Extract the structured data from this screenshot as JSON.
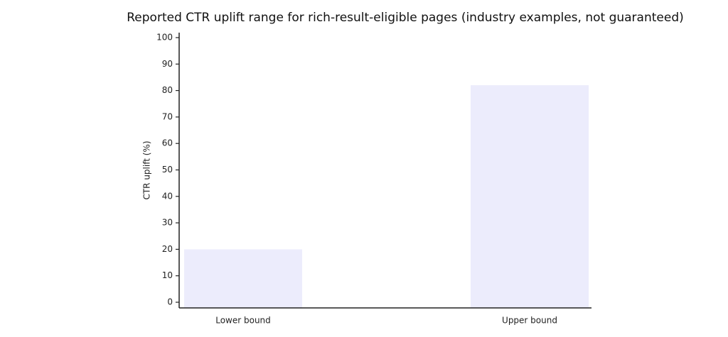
{
  "chart_data": {
    "type": "bar",
    "title": "Reported CTR uplift range for rich-result-eligible pages (industry examples, not guaranteed)",
    "y_label": "CTR uplift (%)",
    "categories": [
      "Lower bound",
      "Upper bound"
    ],
    "values": [
      20,
      82
    ],
    "color": "#ececfc",
    "ylim": [
      0,
      100
    ],
    "yticks": [
      0,
      10,
      20,
      30,
      40,
      50,
      60,
      70,
      80,
      90,
      100
    ],
    "grid": false
  }
}
